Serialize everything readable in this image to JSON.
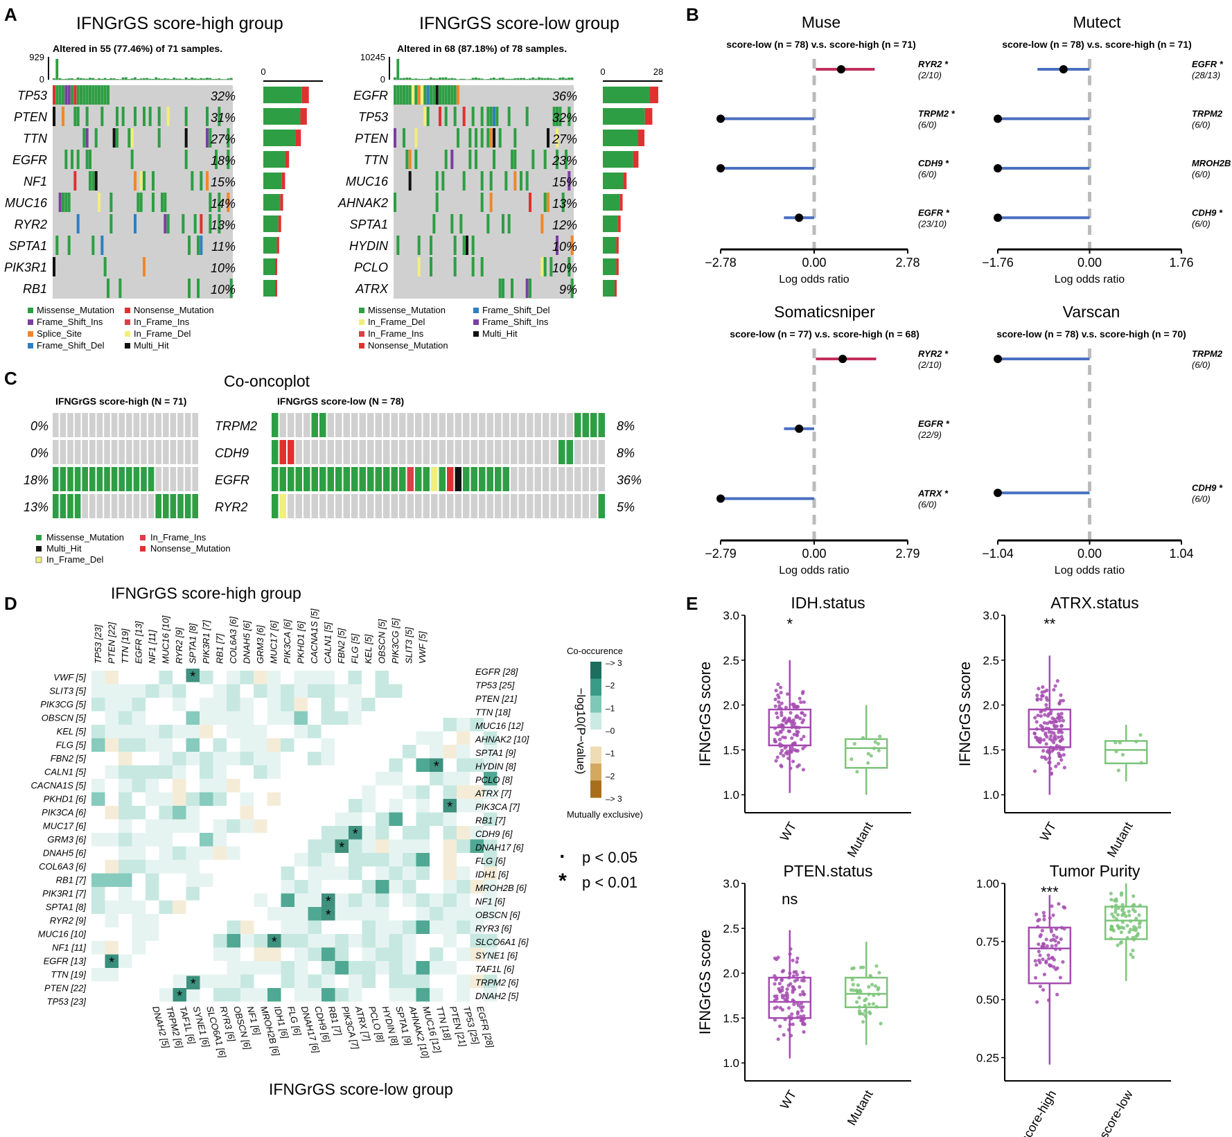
{
  "colors": {
    "missense": "#2e9e44",
    "nonsense": "#e03131",
    "frame_shift_ins": "#7b3fa0",
    "in_frame_ins": "#d9404a",
    "splice_site": "#f0872a",
    "in_frame_del": "#f2ef7a",
    "frame_shift_del": "#2f7fc1",
    "multi_hit": "#111111",
    "grey": "#d0d0d0",
    "red_line": "#c22e5c",
    "blue_line": "#4a6fc0",
    "purple": "#a54bb0",
    "green_box": "#7cc47a",
    "teal": "#1f7f6a",
    "brown": "#a96e1c"
  },
  "panel_labels": [
    "A",
    "B",
    "C",
    "D",
    "E"
  ],
  "chart_data": [
    {
      "id": "A_high",
      "type": "oncoplot",
      "title": "IFNGrGS score-high group",
      "subtitle": "Altered in 55 (77.46%) of 71 samples.",
      "top_axis": [
        "929",
        "0"
      ],
      "side_axis": [
        "0"
      ],
      "genes": [
        "TP53",
        "PTEN",
        "TTN",
        "EGFR",
        "NF1",
        "MUC16",
        "RYR2",
        "SPTA1",
        "PIK3R1",
        "RB1"
      ],
      "percents": [
        "32%",
        "31%",
        "27%",
        "18%",
        "15%",
        "14%",
        "13%",
        "11%",
        "10%",
        "10%"
      ],
      "side_counts": [
        23,
        22,
        19,
        13,
        11,
        10,
        9,
        8,
        7,
        7
      ],
      "side_max": 28
    },
    {
      "id": "A_low",
      "type": "oncoplot",
      "title": "IFNGrGS score-low group",
      "subtitle": "Altered in 68 (87.18%) of 78 samples.",
      "top_axis": [
        "10245",
        "0"
      ],
      "side_axis": [
        "0",
        "28"
      ],
      "genes": [
        "EGFR",
        "TP53",
        "PTEN",
        "TTN",
        "MUC16",
        "AHNAK2",
        "SPTA1",
        "HYDIN",
        "PCLO",
        "ATRX"
      ],
      "percents": [
        "36%",
        "32%",
        "27%",
        "23%",
        "15%",
        "13%",
        "12%",
        "10%",
        "10%",
        "9%"
      ],
      "side_counts": [
        28,
        25,
        21,
        18,
        12,
        10,
        9,
        8,
        8,
        7
      ],
      "side_max": 28
    },
    {
      "id": "A_legend_high",
      "type": "legend",
      "items": [
        {
          "label": "Missense_Mutation",
          "key": "missense"
        },
        {
          "label": "Nonsense_Mutation",
          "key": "nonsense"
        },
        {
          "label": "Frame_Shift_Ins",
          "key": "frame_shift_ins"
        },
        {
          "label": "In_Frame_Ins",
          "key": "in_frame_ins"
        },
        {
          "label": "Splice_Site",
          "key": "splice_site"
        },
        {
          "label": "In_Frame_Del",
          "key": "in_frame_del"
        },
        {
          "label": "Frame_Shift_Del",
          "key": "frame_shift_del"
        },
        {
          "label": "Multi_Hit",
          "key": "multi_hit"
        }
      ]
    },
    {
      "id": "A_legend_low",
      "type": "legend",
      "items": [
        {
          "label": "Missense_Mutation",
          "key": "missense"
        },
        {
          "label": "Frame_Shift_Del",
          "key": "frame_shift_del"
        },
        {
          "label": "In_Frame_Del",
          "key": "in_frame_del"
        },
        {
          "label": "Frame_Shift_Ins",
          "key": "frame_shift_ins"
        },
        {
          "label": "In_Frame_Ins",
          "key": "in_frame_ins"
        },
        {
          "label": "Multi_Hit",
          "key": "multi_hit"
        },
        {
          "label": "Nonsense_Mutation",
          "key": "nonsense"
        }
      ]
    },
    {
      "id": "B",
      "type": "forest",
      "xlabel": "Log odds ratio",
      "panels": [
        {
          "title": "Muse",
          "subtitle": "score-low (n = 78) v.s. score-high (n = 71)",
          "xlim": [
            -2.78,
            2.78
          ],
          "ticks": [
            "−2.78",
            "0.00",
            "2.78"
          ],
          "rows": [
            {
              "gene": "RYR2",
              "count": "(2/10)",
              "star": true,
              "est": 0.8,
              "lo": 0.05,
              "hi": 1.8
            },
            {
              "gene": "TRPM2",
              "count": "(6/0)",
              "star": true,
              "est": -2.78,
              "lo": -2.78,
              "hi": 0
            },
            {
              "gene": "CDH9",
              "count": "(6/0)",
              "star": true,
              "est": -2.78,
              "lo": -2.78,
              "hi": 0
            },
            {
              "gene": "EGFR",
              "count": "(23/10)",
              "star": true,
              "est": -0.45,
              "lo": -0.9,
              "hi": 0
            }
          ]
        },
        {
          "title": "Mutect",
          "subtitle": "score-low (n = 78) v.s. score-high (n = 71)",
          "xlim": [
            -1.76,
            1.76
          ],
          "ticks": [
            "−1.76",
            "0.00",
            "1.76"
          ],
          "rows": [
            {
              "gene": "EGFR",
              "count": "(28/13)",
              "star": true,
              "est": -0.5,
              "lo": -1.0,
              "hi": 0
            },
            {
              "gene": "TRPM2",
              "count": "(6/0)",
              "star": false,
              "est": -1.76,
              "lo": -1.76,
              "hi": 0
            },
            {
              "gene": "MROH2B",
              "count": "(6/0)",
              "star": false,
              "est": -1.76,
              "lo": -1.76,
              "hi": 0
            },
            {
              "gene": "CDH9",
              "count": "(6/0)",
              "star": true,
              "est": -1.76,
              "lo": -1.76,
              "hi": 0
            }
          ]
        },
        {
          "title": "Somaticsniper",
          "subtitle": "score-low (n = 77) v.s. score-high (n = 68)",
          "xlim": [
            -2.79,
            2.79
          ],
          "ticks": [
            "−2.79",
            "0.00",
            "2.79"
          ],
          "rows": [
            {
              "gene": "RYR2",
              "count": "(2/10)",
              "star": true,
              "est": 0.85,
              "lo": 0.05,
              "hi": 1.85
            },
            {
              "gene": "EGFR",
              "count": "(22/9)",
              "star": true,
              "est": -0.45,
              "lo": -0.9,
              "hi": 0
            },
            {
              "gene": "ATRX",
              "count": "(6/0)",
              "star": true,
              "est": -2.79,
              "lo": -2.79,
              "hi": 0
            }
          ]
        },
        {
          "title": "Varscan",
          "subtitle": "score-low (n = 78) v.s. score-high (n = 70)",
          "xlim": [
            -1.04,
            1.04
          ],
          "ticks": [
            "−1.04",
            "0.00",
            "1.04"
          ],
          "rows": [
            {
              "gene": "TRPM2",
              "count": "(6/0)",
              "star": false,
              "est": -1.04,
              "lo": -1.04,
              "hi": 0
            },
            {
              "gene": "CDH9",
              "count": "(6/0)",
              "star": true,
              "est": -1.04,
              "lo": -1.04,
              "hi": 0
            }
          ]
        }
      ]
    },
    {
      "id": "C",
      "type": "co-oncoplot",
      "title": "Co-oncoplot",
      "left_title": "IFNGrGS score-high (N = 71)",
      "right_title": "IFNGrGS score-low (N = 78)",
      "genes": [
        "TRPM2",
        "CDH9",
        "EGFR",
        "RYR2"
      ],
      "left_percents": [
        "0%",
        "0%",
        "18%",
        "13%"
      ],
      "right_percents": [
        "8%",
        "8%",
        "36%",
        "5%"
      ],
      "legend": [
        {
          "label": "Missense_Mutation",
          "key": "missense"
        },
        {
          "label": "In_Frame_Ins",
          "key": "in_frame_ins"
        },
        {
          "label": "Multi_Hit",
          "key": "multi_hit"
        },
        {
          "label": "Nonsense_Mutation",
          "key": "nonsense"
        },
        {
          "label": "In_Frame_Del",
          "key": "in_frame_del"
        }
      ]
    },
    {
      "id": "D",
      "type": "heatmap",
      "title": "IFNGrGS score-high group",
      "bottom_title": "IFNGrGS score-low group",
      "high_genes": [
        "TP53 [23]",
        "PTEN [22]",
        "TTN [19]",
        "EGFR [13]",
        "NF1 [11]",
        "MUC16 [10]",
        "RYR2 [9]",
        "SPTA1 [8]",
        "PIK3R1 [7]",
        "RB1 [7]",
        "COL6A3 [6]",
        "DNAH5 [6]",
        "GRM3 [6]",
        "MUC17 [6]",
        "PIK3CA [6]",
        "PKHD1 [6]",
        "CACNA1S [5]",
        "CALN1 [5]",
        "FBN2 [5]",
        "FLG [5]",
        "KEL [5]",
        "OBSCN [5]",
        "PIK3CG [5]",
        "SLIT3 [5]",
        "VWF [5]"
      ],
      "low_genes_right": [
        "EGFR [28]",
        "TP53 [25]",
        "PTEN [21]",
        "TTN [18]",
        "MUC16 [12]",
        "AHNAK2 [10]",
        "SPTA1 [9]",
        "HYDIN [8]",
        "PCLO [8]",
        "ATRX [7]",
        "PIK3CA [7]",
        "RB1 [7]",
        "CDH9 [6]",
        "DNAH17 [6]",
        "FLG [6]",
        "IDH1 [6]",
        "MROH2B [6]",
        "NF1 [6]",
        "OBSCN [6]",
        "RYR3 [6]",
        "SLCO6A1 [6]",
        "SYNE1 [6]",
        "TAF1L [6]",
        "TRPM2 [6]",
        "DNAH2 [5]"
      ],
      "low_genes_bottom": [
        "DNAH2 [5]",
        "TRPM2 [6]",
        "TAF1L [6]",
        "SYNE1 [6]",
        "SLCO6A1 [6]",
        "RYR3 [6]",
        "OBSCN [6]",
        "NF1 [6]",
        "MROH2B [6]",
        "IDH1 [6]",
        "FLG [6]",
        "DNAH17 [6]",
        "CDH9 [6]",
        "RB1 [7]",
        "PIK3CA [7]",
        "ATRX [7]",
        "PCLO [8]",
        "HYDIN [8]",
        "SPTA1 [9]",
        "AHNAK2 [10]",
        "MUC16 [12]",
        "TTN [18]",
        "PTEN [21]",
        "TP53 [25]",
        "EGFR [28]"
      ],
      "colorbar": {
        "top_label": "Co-occurence",
        "bottom_label": "Mutually exclusive)",
        "axis_label": "−log10(P−value)",
        "ticks": [
          "> 3",
          "2",
          "1",
          "0",
          "1",
          "2",
          "> 3"
        ]
      },
      "sig_legend": [
        {
          "symbol": "·",
          "label": "p < 0.05"
        },
        {
          "symbol": "*",
          "label": "p < 0.01"
        }
      ]
    },
    {
      "id": "E",
      "type": "boxplot",
      "ylabel": "IFNGrGS score",
      "panels": [
        {
          "title": "IDH.status",
          "categories": [
            "WT",
            "Mutant"
          ],
          "sig": "*",
          "ylim": [
            0.8,
            3.0
          ],
          "ticks": [
            "1.0",
            "1.5",
            "2.0",
            "2.5",
            "3.0"
          ],
          "ylabel": "IFNGrGS score",
          "boxes": [
            {
              "q1": 1.55,
              "median": 1.75,
              "q3": 1.95,
              "wlo": 1.02,
              "whi": 2.5,
              "n": 120
            },
            {
              "q1": 1.3,
              "median": 1.52,
              "q3": 1.62,
              "wlo": 1.0,
              "whi": 2.0,
              "n": 12
            }
          ]
        },
        {
          "title": "ATRX.status",
          "categories": [
            "WT",
            "Mutant"
          ],
          "sig": "**",
          "ylim": [
            0.8,
            3.0
          ],
          "ticks": [
            "1.0",
            "1.5",
            "2.0",
            "2.5",
            "3.0"
          ],
          "ylabel": "IFNGrGS score",
          "boxes": [
            {
              "q1": 1.53,
              "median": 1.73,
              "q3": 1.95,
              "wlo": 1.0,
              "whi": 2.55,
              "n": 130
            },
            {
              "q1": 1.35,
              "median": 1.5,
              "q3": 1.6,
              "wlo": 1.15,
              "whi": 1.78,
              "n": 8
            }
          ]
        },
        {
          "title": "PTEN.status",
          "categories": [
            "WT",
            "Mutant"
          ],
          "sig": "ns",
          "ylim": [
            0.8,
            3.0
          ],
          "ticks": [
            "1.0",
            "1.5",
            "2.0",
            "2.5",
            "3.0"
          ],
          "ylabel": "IFNGrGS score",
          "boxes": [
            {
              "q1": 1.5,
              "median": 1.68,
              "q3": 1.95,
              "wlo": 1.05,
              "whi": 2.48,
              "n": 100
            },
            {
              "q1": 1.62,
              "median": 1.77,
              "q3": 1.95,
              "wlo": 1.2,
              "whi": 2.35,
              "n": 45
            }
          ]
        },
        {
          "title": "Tumor Purity",
          "categories": [
            "score-high",
            "score-low"
          ],
          "sig": "***",
          "ylim": [
            0.15,
            1.0
          ],
          "ticks": [
            "0.25",
            "0.50",
            "0.75",
            "1.00"
          ],
          "ylabel": "",
          "boxes": [
            {
              "q1": 0.57,
              "median": 0.72,
              "q3": 0.81,
              "wlo": 0.22,
              "whi": 0.95,
              "n": 70
            },
            {
              "q1": 0.76,
              "median": 0.84,
              "q3": 0.9,
              "wlo": 0.58,
              "whi": 1.0,
              "n": 70
            }
          ]
        }
      ]
    }
  ]
}
